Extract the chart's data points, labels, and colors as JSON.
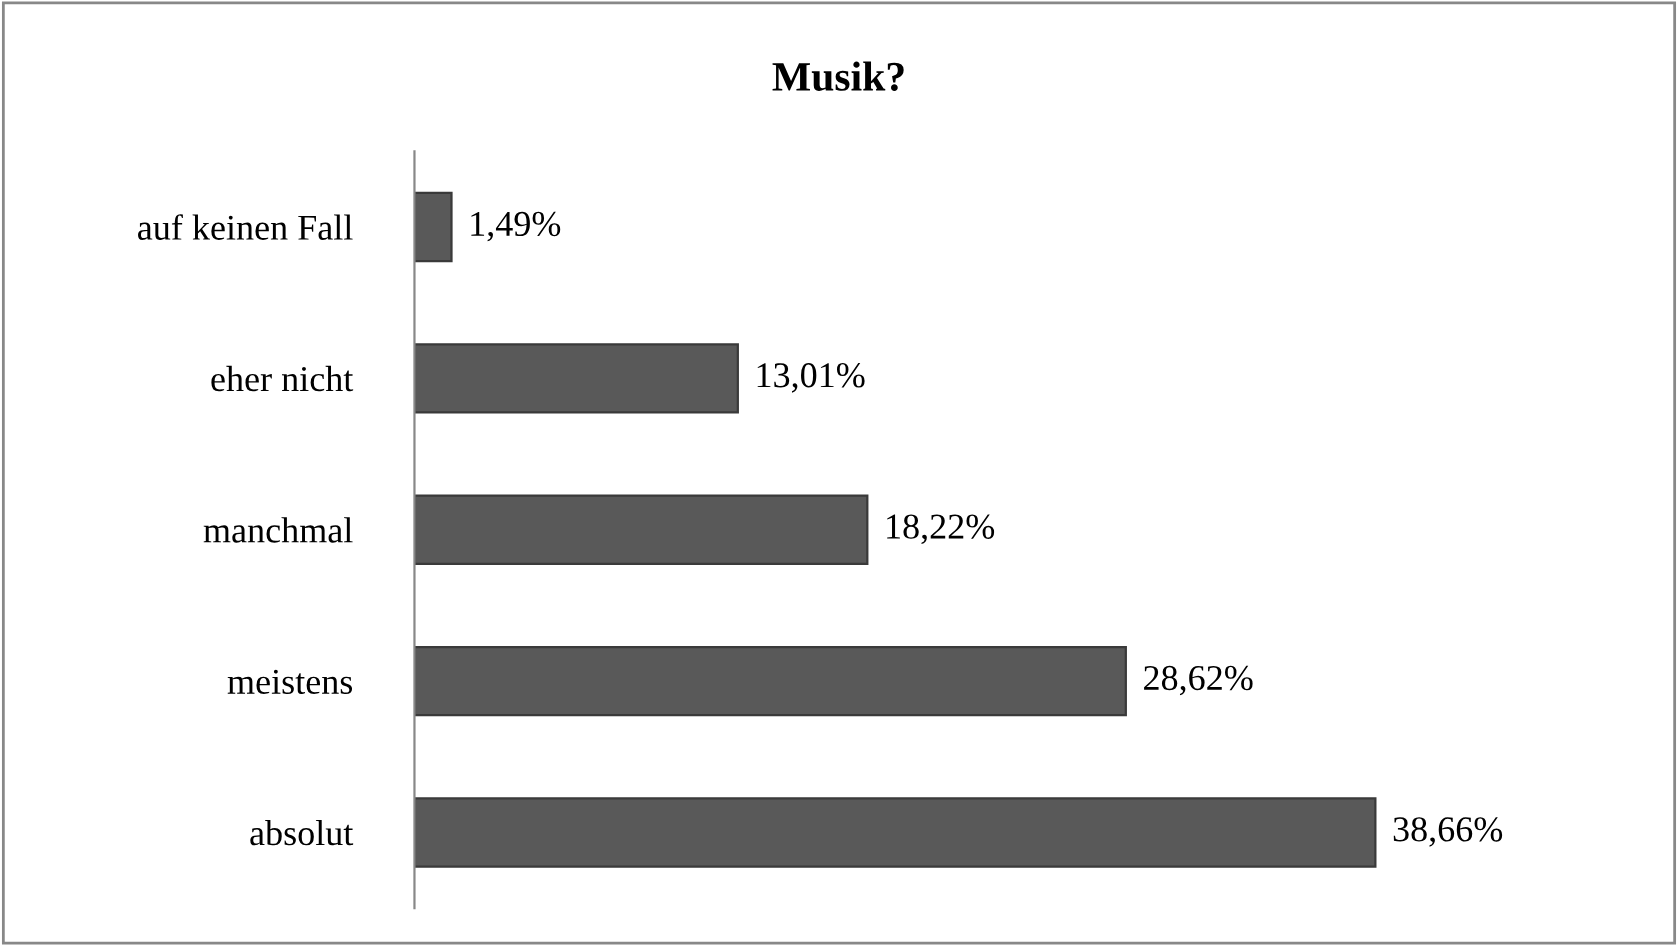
{
  "chart_data": {
    "type": "bar",
    "orientation": "horizontal",
    "title": "Musik?",
    "categories": [
      "auf keinen Fall",
      "eher nicht",
      "manchmal",
      "meistens",
      "absolut"
    ],
    "values": [
      1.49,
      13.01,
      18.22,
      28.62,
      38.66
    ],
    "value_labels": [
      "1,49%",
      "13,01%",
      "18,22%",
      "28,62%",
      "38,66%"
    ],
    "color": "#595959",
    "grid": false,
    "legend": false
  }
}
